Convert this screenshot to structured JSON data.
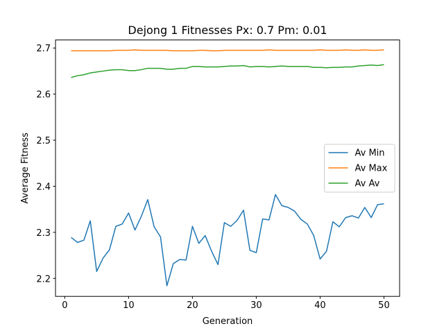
{
  "chart_data": {
    "type": "line",
    "title": "Dejong 1 Fitnesses Px: 0.7 Pm: 0.01",
    "xlabel": "Generation",
    "ylabel": "Average Fitness",
    "xlim": [
      -1.45,
      52.45
    ],
    "ylim": [
      2.161,
      2.7175
    ],
    "xticks": [
      0,
      10,
      20,
      30,
      40,
      50
    ],
    "yticks": [
      2.2,
      2.3,
      2.4,
      2.5,
      2.6,
      2.7
    ],
    "xtick_labels": [
      "0",
      "10",
      "20",
      "30",
      "40",
      "50"
    ],
    "ytick_labels": [
      "2.2",
      "2.3",
      "2.4",
      "2.5",
      "2.6",
      "2.7"
    ],
    "grid": false,
    "legend_position": "center-right",
    "x": [
      1,
      2,
      3,
      4,
      5,
      6,
      7,
      8,
      9,
      10,
      11,
      12,
      13,
      14,
      15,
      16,
      17,
      18,
      19,
      20,
      21,
      22,
      23,
      24,
      25,
      26,
      27,
      28,
      29,
      30,
      31,
      32,
      33,
      34,
      35,
      36,
      37,
      38,
      39,
      40,
      41,
      42,
      43,
      44,
      45,
      46,
      47,
      48,
      49,
      50
    ],
    "series": [
      {
        "name": "Av Min",
        "color": "#1f77b4",
        "values": [
          2.289,
          2.278,
          2.283,
          2.325,
          2.215,
          2.244,
          2.262,
          2.313,
          2.318,
          2.342,
          2.305,
          2.335,
          2.371,
          2.312,
          2.29,
          2.184,
          2.232,
          2.241,
          2.24,
          2.313,
          2.276,
          2.293,
          2.259,
          2.23,
          2.321,
          2.313,
          2.326,
          2.348,
          2.261,
          2.256,
          2.329,
          2.327,
          2.382,
          2.358,
          2.354,
          2.346,
          2.328,
          2.318,
          2.293,
          2.242,
          2.259,
          2.323,
          2.312,
          2.332,
          2.336,
          2.331,
          2.354,
          2.332,
          2.36,
          2.362
        ]
      },
      {
        "name": "Av Max",
        "color": "#ff7f0e",
        "values": [
          2.694,
          2.694,
          2.694,
          2.694,
          2.694,
          2.694,
          2.694,
          2.695,
          2.695,
          2.695,
          2.696,
          2.695,
          2.695,
          2.695,
          2.695,
          2.695,
          2.694,
          2.694,
          2.694,
          2.694,
          2.695,
          2.695,
          2.694,
          2.694,
          2.695,
          2.695,
          2.695,
          2.695,
          2.695,
          2.695,
          2.695,
          2.696,
          2.695,
          2.695,
          2.695,
          2.695,
          2.695,
          2.695,
          2.695,
          2.696,
          2.695,
          2.695,
          2.695,
          2.696,
          2.695,
          2.695,
          2.696,
          2.695,
          2.695,
          2.696
        ]
      },
      {
        "name": "Av Av",
        "color": "#2ca02c",
        "values": [
          2.636,
          2.64,
          2.642,
          2.646,
          2.648,
          2.65,
          2.652,
          2.653,
          2.653,
          2.651,
          2.651,
          2.653,
          2.656,
          2.656,
          2.656,
          2.654,
          2.654,
          2.656,
          2.656,
          2.66,
          2.66,
          2.659,
          2.659,
          2.659,
          2.66,
          2.661,
          2.661,
          2.662,
          2.659,
          2.66,
          2.66,
          2.659,
          2.66,
          2.661,
          2.66,
          2.66,
          2.66,
          2.66,
          2.658,
          2.658,
          2.657,
          2.658,
          2.658,
          2.659,
          2.659,
          2.661,
          2.662,
          2.663,
          2.662,
          2.664
        ]
      }
    ]
  }
}
